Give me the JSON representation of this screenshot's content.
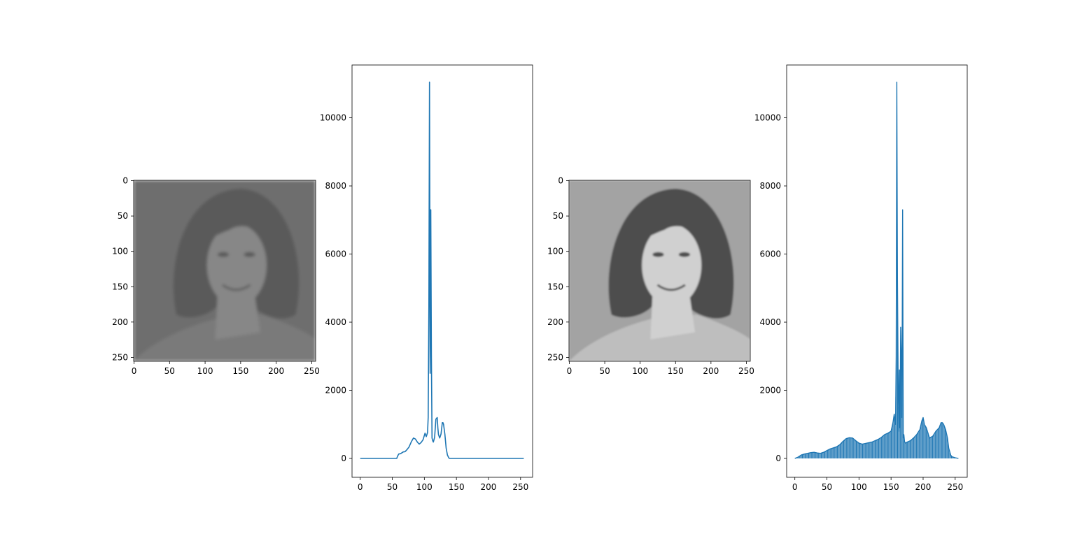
{
  "chart_data": [
    {
      "type": "image",
      "title": "",
      "description_in_pixels": "low-contrast grayscale portrait",
      "xlabel": "",
      "ylabel": "",
      "xlim": [
        0,
        256
      ],
      "ylim": [
        256,
        0
      ],
      "x_ticks": [
        "0",
        "50",
        "100",
        "150",
        "200",
        "250"
      ],
      "y_ticks": [
        "0",
        "50",
        "100",
        "150",
        "200",
        "250"
      ],
      "palette": {
        "bg": "#6e6e6e",
        "hair": "#5a5a5a",
        "skin": "#878787",
        "shirt": "#7a7a7a"
      }
    },
    {
      "type": "line",
      "title": "",
      "xlabel": "",
      "ylabel": "",
      "xlim": [
        0,
        256
      ],
      "ylim": [
        0,
        11000
      ],
      "x_ticks": [
        "0",
        "50",
        "100",
        "150",
        "200",
        "250"
      ],
      "y_ticks": [
        "0",
        "2000",
        "4000",
        "6000",
        "8000",
        "10000"
      ],
      "color": "#1f77b4",
      "x": [
        0,
        57,
        58,
        60,
        63,
        67,
        70,
        73,
        76,
        80,
        83,
        86,
        89,
        92,
        95,
        98,
        101,
        103,
        105,
        106,
        107,
        108,
        109,
        110,
        111,
        112,
        113,
        114,
        116,
        118,
        120,
        121,
        122,
        124,
        126,
        128,
        129,
        130,
        132,
        134,
        136,
        138,
        139,
        140,
        141,
        143,
        145,
        150,
        160,
        200,
        255
      ],
      "y": [
        0,
        0,
        60,
        130,
        140,
        190,
        200,
        260,
        330,
        500,
        600,
        570,
        480,
        420,
        470,
        550,
        740,
        640,
        760,
        1200,
        4500,
        11050,
        2500,
        7300,
        3000,
        600,
        520,
        480,
        620,
        1150,
        1200,
        900,
        700,
        600,
        720,
        1050,
        1050,
        1000,
        700,
        300,
        100,
        20,
        0,
        0,
        0,
        0,
        0,
        0,
        0,
        0,
        0
      ]
    },
    {
      "type": "image",
      "title": "",
      "description_in_pixels": "contrast-equalized grayscale portrait",
      "xlabel": "",
      "ylabel": "",
      "xlim": [
        0,
        256
      ],
      "ylim": [
        256,
        0
      ],
      "x_ticks": [
        "0",
        "50",
        "100",
        "150",
        "200",
        "250"
      ],
      "y_ticks": [
        "0",
        "50",
        "100",
        "150",
        "200",
        "250"
      ],
      "palette": {
        "bg": "#a2a2a2",
        "hair": "#4a4a4a",
        "skin": "#d0d0d0",
        "shirt": "#bdbdbd"
      }
    },
    {
      "type": "line",
      "title": "",
      "xlabel": "",
      "ylabel": "",
      "xlim": [
        0,
        256
      ],
      "ylim": [
        0,
        11000
      ],
      "x_ticks": [
        "0",
        "50",
        "100",
        "150",
        "200",
        "250"
      ],
      "y_ticks": [
        "0",
        "2000",
        "4000",
        "6000",
        "8000",
        "10000"
      ],
      "color": "#1f77b4",
      "x": [
        0,
        5,
        10,
        15,
        20,
        25,
        30,
        35,
        40,
        45,
        50,
        55,
        60,
        65,
        70,
        75,
        80,
        85,
        90,
        95,
        100,
        105,
        110,
        115,
        120,
        125,
        130,
        135,
        140,
        145,
        150,
        153,
        155,
        157,
        158,
        159,
        160,
        161,
        162,
        163,
        164,
        165,
        166,
        167,
        168,
        169,
        170,
        171,
        172,
        175,
        180,
        185,
        190,
        195,
        198,
        200,
        202,
        205,
        210,
        215,
        220,
        225,
        228,
        230,
        232,
        235,
        238,
        240,
        243,
        245,
        250,
        255
      ],
      "y": [
        0,
        40,
        100,
        130,
        150,
        170,
        180,
        160,
        150,
        180,
        230,
        280,
        310,
        340,
        400,
        500,
        580,
        610,
        600,
        520,
        450,
        420,
        440,
        460,
        480,
        520,
        560,
        620,
        700,
        740,
        800,
        1050,
        1300,
        1000,
        3000,
        11050,
        5300,
        2600,
        800,
        2600,
        900,
        3850,
        3000,
        1200,
        7300,
        600,
        700,
        500,
        450,
        480,
        520,
        600,
        700,
        850,
        1100,
        1200,
        1000,
        900,
        600,
        650,
        800,
        900,
        1050,
        1050,
        1000,
        850,
        600,
        300,
        100,
        50,
        20,
        0
      ]
    }
  ]
}
